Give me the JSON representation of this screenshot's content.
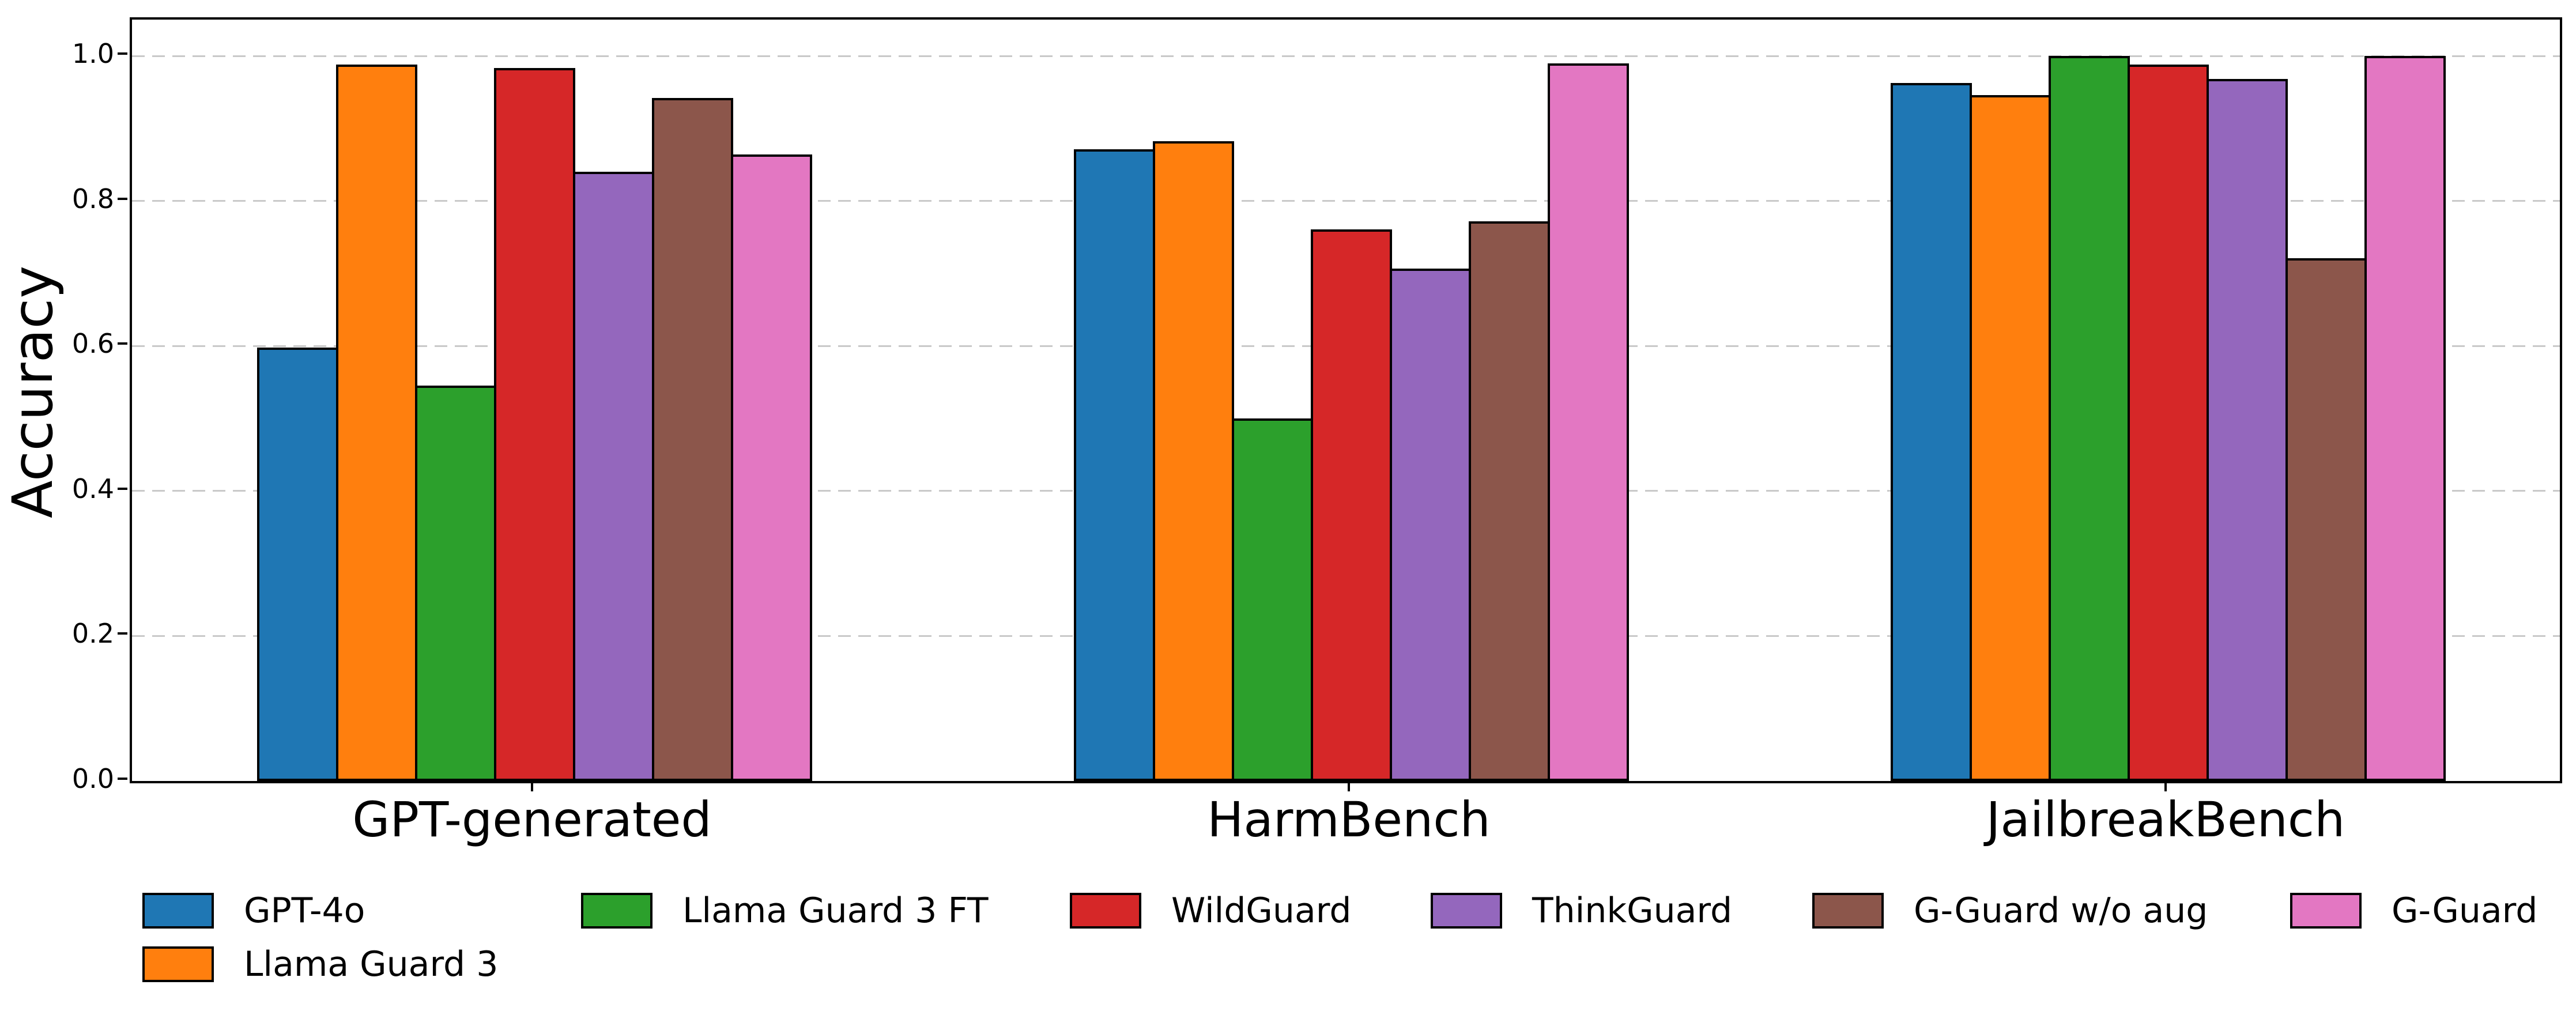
{
  "figure": {
    "background": "#ffffff",
    "frame_color": "#000000",
    "grid_color": "#c9c9c9",
    "bar_edge_color": "#000000"
  },
  "chart_data": {
    "type": "bar",
    "title": "",
    "xlabel": "",
    "ylabel": "Accuracy",
    "categories": [
      "GPT-generated",
      "HarmBench",
      "JailbreakBench"
    ],
    "series": [
      {
        "name": "GPT-4o",
        "color": "#1f77b4",
        "values": [
          0.598,
          0.871,
          0.963
        ]
      },
      {
        "name": "Llama Guard 3",
        "color": "#ff7f0e",
        "values": [
          0.988,
          0.882,
          0.946
        ]
      },
      {
        "name": "Llama Guard 3 FT",
        "color": "#2ca02c",
        "values": [
          0.545,
          0.5,
          1.0
        ]
      },
      {
        "name": "WildGuard",
        "color": "#d62728",
        "values": [
          0.983,
          0.761,
          0.988
        ]
      },
      {
        "name": "ThinkGuard",
        "color": "#9467bd",
        "values": [
          0.84,
          0.707,
          0.968
        ]
      },
      {
        "name": "G-Guard w/o aug",
        "color": "#8c564b",
        "values": [
          0.942,
          0.772,
          0.721
        ]
      },
      {
        "name": "G-Guard",
        "color": "#e377c2",
        "values": [
          0.864,
          0.99,
          1.0
        ]
      }
    ],
    "ylim": [
      0.0,
      1.05
    ],
    "yticks": [
      0.0,
      0.2,
      0.4,
      0.6,
      0.8,
      1.0
    ],
    "ytick_labels": [
      "0.0",
      "0.2",
      "0.4",
      "0.6",
      "0.8",
      "1.0"
    ],
    "grid": "horizontal-dashed",
    "legend_position": "below-chart",
    "legend_rows": 2,
    "legend_columns": 6,
    "legend_column_order": [
      [
        0,
        1
      ],
      [
        2
      ],
      [
        3
      ],
      [
        4
      ],
      [
        5
      ],
      [
        6
      ]
    ]
  }
}
